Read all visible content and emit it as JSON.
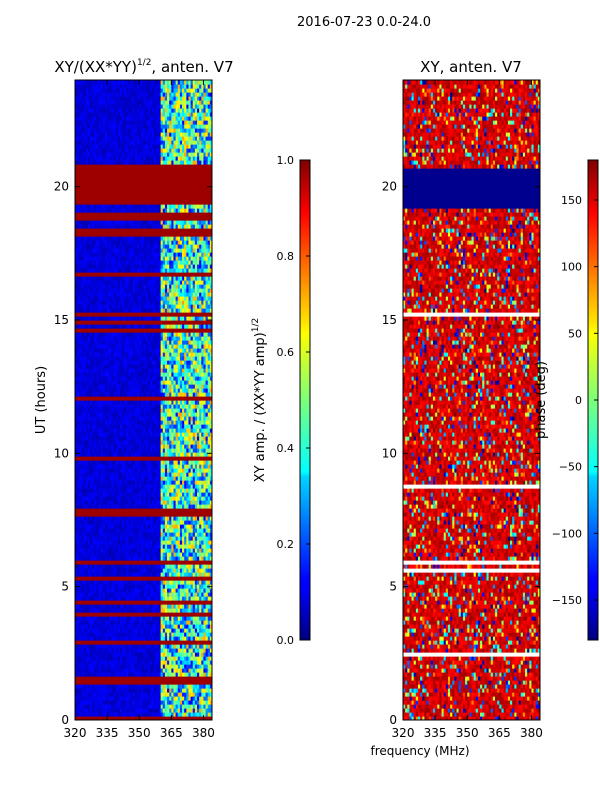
{
  "chart_data": [
    {
      "type": "heatmap",
      "suptitle": "2016-07-23 0.0-24.0",
      "title": "XY/(XX*YY)",
      "title_sup": "1/2",
      "title_suffix": ", anten. V7",
      "xlabel": "",
      "ylabel": "UT (hours)",
      "xlim": [
        320,
        384
      ],
      "ylim": [
        0,
        24
      ],
      "xticks": [
        320,
        335,
        350,
        365,
        380
      ],
      "yticks": [
        0,
        5,
        10,
        15,
        20
      ],
      "colorbar": {
        "label": "XY amp. / (XX*YY amp)",
        "label_sup": "1/2",
        "range": [
          0.0,
          1.0
        ],
        "ticks": [
          "0.0",
          "0.2",
          "0.4",
          "0.6",
          "0.8",
          "1.0"
        ],
        "tick_values": [
          0.0,
          0.2,
          0.4,
          0.6,
          0.8,
          1.0
        ],
        "colormap": "jet"
      },
      "features": {
        "background_value": 0.05,
        "high_band_start_mhz": 360,
        "saturated_bands_hours": [
          [
            18.1,
            18.4
          ],
          [
            18.7,
            19.1
          ],
          [
            19.3,
            20.8
          ],
          [
            15.1,
            15.3
          ],
          [
            14.5,
            14.7
          ],
          [
            12.0,
            12.2
          ],
          [
            7.7,
            8.0
          ],
          [
            1.4,
            1.6
          ]
        ]
      }
    },
    {
      "type": "heatmap",
      "title": "XY, anten. V7",
      "xlabel": "frequency (MHz)",
      "ylabel": "",
      "xlim": [
        320,
        384
      ],
      "ylim": [
        0,
        24
      ],
      "xticks": [
        320,
        335,
        350,
        365,
        380
      ],
      "yticks": [
        0,
        5,
        10,
        15,
        20
      ],
      "colorbar": {
        "label": "phase (deg)",
        "range": [
          -180,
          180
        ],
        "ticks": [
          "150",
          "100",
          "50",
          "0",
          "−50",
          "−100",
          "−150"
        ],
        "tick_values": [
          150,
          100,
          50,
          0,
          -50,
          -100,
          -150
        ],
        "colormap": "jet"
      },
      "features": {
        "background_value_deg": 150,
        "flat_band_hours": [
          19.2,
          20.7
        ],
        "flat_band_value_deg": -175
      }
    }
  ]
}
